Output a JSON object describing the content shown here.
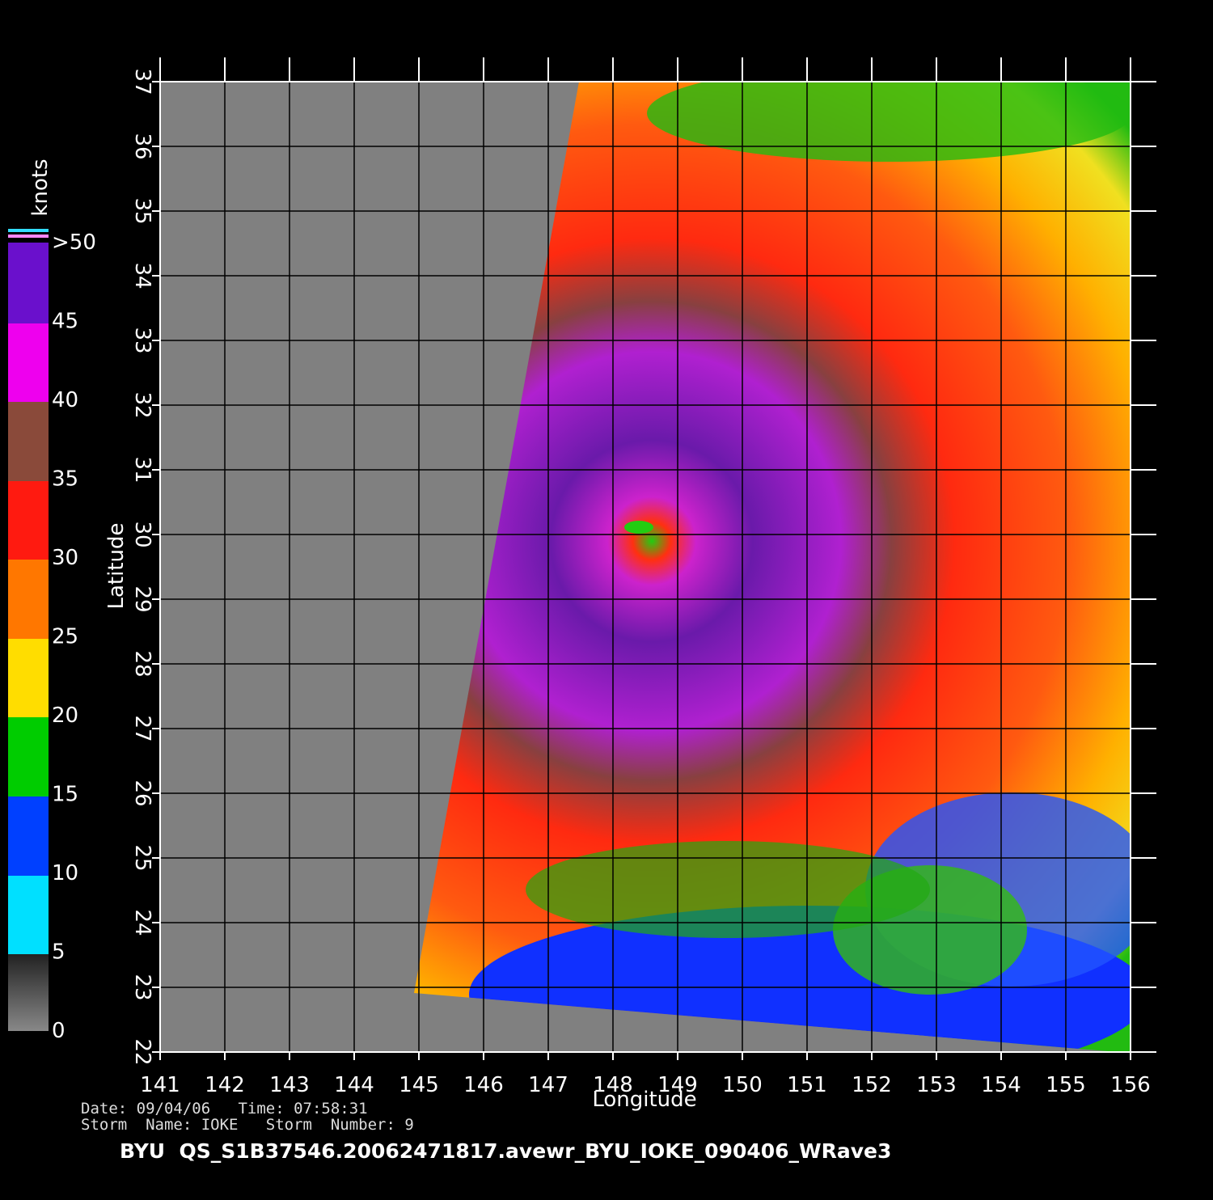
{
  "map": {
    "xlabel": "Longitude",
    "ylabel": "Latitude",
    "xlim": [
      141,
      156
    ],
    "ylim": [
      22,
      37
    ],
    "xticks": [
      141,
      142,
      143,
      144,
      145,
      146,
      147,
      148,
      149,
      150,
      151,
      152,
      153,
      154,
      155,
      156
    ],
    "yticks": [
      22,
      23,
      24,
      25,
      26,
      27,
      28,
      29,
      30,
      31,
      32,
      33,
      34,
      35,
      36,
      37
    ]
  },
  "colorbar": {
    "title": "knots",
    "lim": [
      0,
      50
    ],
    "ticks": [
      0,
      5,
      10,
      15,
      20,
      25,
      30,
      35,
      40,
      45,
      {
        "value": 50,
        "label": ">50"
      }
    ]
  },
  "footer": {
    "line1": "Date: 09/04/06   Time: 07:58:31",
    "line2": "Storm  Name: IOKE   Storm  Number: 9",
    "file": "BYU  QS_S1B37546.20062471817.avewr_BYU_IOKE_090406_WRave3"
  }
}
